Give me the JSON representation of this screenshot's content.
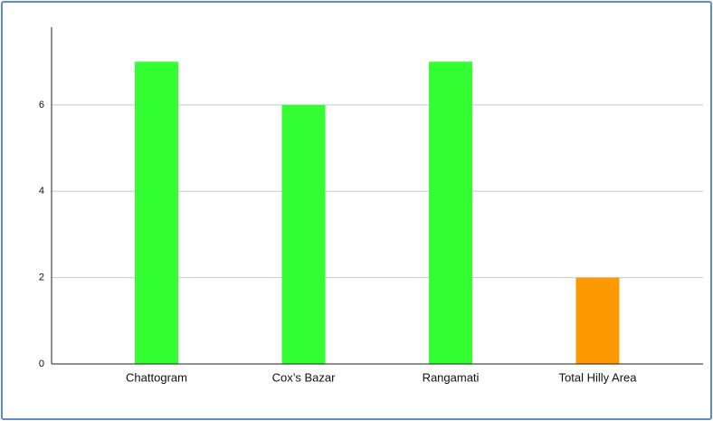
{
  "chart_data": {
    "type": "bar",
    "categories": [
      "Chattogram",
      "Cox’s Bazar",
      "Rangamati",
      "Total Hilly Area"
    ],
    "values": [
      7,
      6,
      7,
      2
    ],
    "colors": [
      "#33ff33",
      "#33ff33",
      "#33ff33",
      "#ff9900"
    ],
    "ylim": [
      0,
      7.8
    ],
    "yticks": [
      0,
      2,
      4,
      6
    ],
    "grid": true
  }
}
